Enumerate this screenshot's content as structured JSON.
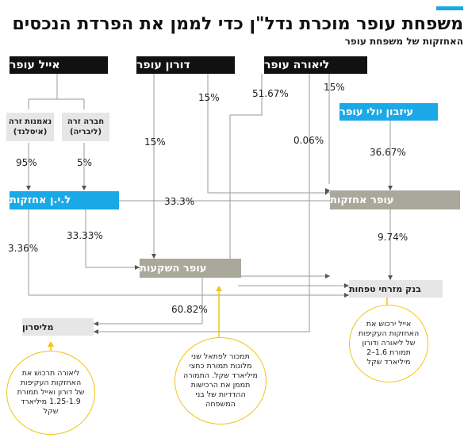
{
  "title": "משפחת עופר מוכרת נדל\"ן כדי לממן את הפרדת הנכסים",
  "subtitle": "האחזקות של משפחת עופר",
  "colors": {
    "accent": "#1aa9e6",
    "blue": "#1aa9e6",
    "gray": "#aaa89a",
    "person": "#111111",
    "note_border": "#f0c419"
  },
  "people": {
    "eyal": "אייל עופר",
    "doron": "דורון עופר",
    "liora": "ליאורה עופר",
    "estate": "עיזבון יולי עופר"
  },
  "entities": {
    "foreign_trust": "נאמנות זרה\n(איסלנד)",
    "foreign_company": "חברה זרה\n(ליבריה)",
    "ln_holdings": "ל.י.ן אחזקות",
    "ofer_holdings": "עופר אחזקות",
    "ofer_investments": "עופר השקעות",
    "mizrahi_bank": "בנק מזרחי טפחות",
    "melisron": "מליסרון"
  },
  "percentages": {
    "doron_to_holdings": "15%",
    "liora_to_holdings": "51.67%",
    "liora_to_mizrahi": "15%",
    "doron_to_investments": "15%",
    "liora_to_melisron": "0.06%",
    "estate_to_holdings": "36.67%",
    "trust_to_ln": "95%",
    "company_to_ln": "5%",
    "ln_to_holdings": "33.3%",
    "ln_to_mizrahi": "3.36%",
    "ln_to_investments": "33.33%",
    "holdings_to_mizrahi": "9.74%",
    "investments_to_melisron": "60.82%"
  },
  "notes": {
    "left": "ליאורה תרכוש את האחזקות העקיפות של דורון ואייל תמורת 1.25-1.9 מיליארד שקל",
    "middle": "תמכור לפתאל שני מלונות תמורת כחצי מיליארד שקל. התמורה תממן את הרכישות ההדדיות של בני המשפחה",
    "right": "אייל ירכוש את האחזקות העקיפות של ליאורה ודורון תמורת 1.6–2 מיליארד שקל"
  }
}
